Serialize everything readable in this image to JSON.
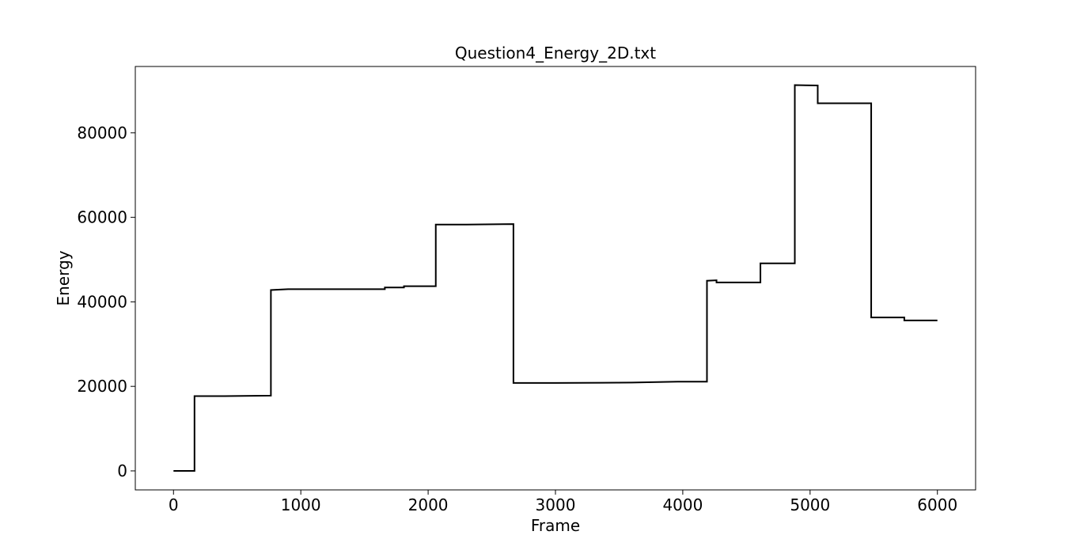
{
  "chart_data": {
    "type": "line",
    "title": "Question4_Energy_2D.txt",
    "xlabel": "Frame",
    "ylabel": "Energy",
    "xlim": [
      -300,
      6300
    ],
    "ylim": [
      -4500,
      95700
    ],
    "x_ticks": [
      0,
      1000,
      2000,
      3000,
      4000,
      5000,
      6000
    ],
    "y_ticks": [
      0,
      20000,
      40000,
      60000,
      80000
    ],
    "grid": false,
    "legend": "none",
    "line_style": "steps",
    "colors": {
      "line": "#000000",
      "axes": "#000000",
      "background": "#ffffff"
    },
    "series": [
      {
        "x": [
          0,
          165,
          165,
          400,
          765,
          765,
          900,
          1200,
          1660,
          1660,
          1810,
          1810,
          2060,
          2060,
          2300,
          2670,
          2670,
          3000,
          3600,
          3960,
          4190,
          4190,
          4265,
          4265,
          4610,
          4610,
          4880,
          4880,
          5060,
          5060,
          5480,
          5480,
          5740,
          5740,
          6000
        ],
        "y": [
          0,
          0,
          17700,
          17700,
          17800,
          42800,
          43000,
          43000,
          43000,
          43400,
          43400,
          43700,
          43700,
          58300,
          58300,
          58400,
          20800,
          20800,
          20900,
          21100,
          21100,
          45000,
          45100,
          44600,
          44600,
          49100,
          49100,
          91300,
          91200,
          87000,
          87000,
          36300,
          36300,
          35600,
          35600
        ]
      }
    ]
  }
}
